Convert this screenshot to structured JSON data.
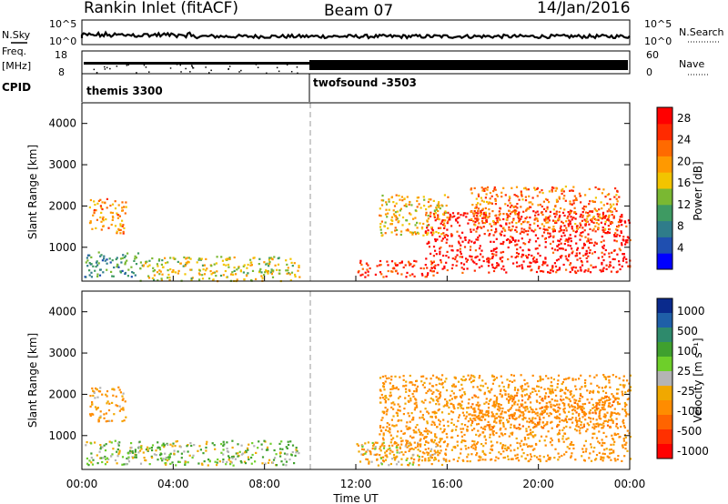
{
  "header": {
    "station": "Rankin Inlet (fitACF)",
    "beam": "Beam 07",
    "date": "14/Jan/2016"
  },
  "aux": {
    "nsky_label": "N.Sky",
    "nsearch_label": "N.Search",
    "noise_ticks": [
      "10^5",
      "10^0"
    ],
    "freq_label_1": "Freq.",
    "freq_label_2": "[MHz]",
    "freq_ticks": [
      "18",
      "8"
    ],
    "nave_label": "Nave",
    "nave_ticks": [
      "60",
      "0"
    ],
    "cpid_label": "CPID",
    "cpid_modes": [
      {
        "name": "themis 3300",
        "start_hour": 0
      },
      {
        "name": "twofsound -3503",
        "start_hour": 10
      }
    ]
  },
  "colors": {
    "power_scale": [
      "#0000ff",
      "#1f4fb0",
      "#2f7c8a",
      "#3e9a62",
      "#7ab832",
      "#f2c400",
      "#ff9900",
      "#ff6a00",
      "#ff2a00",
      "#ff0000"
    ],
    "velocity_scale": [
      "#0a2a8c",
      "#1f5fa8",
      "#2e8a6c",
      "#3fa02e",
      "#6ecf2a",
      "#b4b4b4",
      "#f0a800",
      "#ff8c00",
      "#ff6400",
      "#ff3000",
      "#ff0000"
    ]
  },
  "chart_data": [
    {
      "type": "heatmap",
      "panel": "power",
      "x_label": "Time UT",
      "y_label": "Slant Range [km]",
      "x_ticks": [
        "00:00",
        "04:00",
        "08:00",
        "12:00",
        "16:00",
        "20:00",
        "00:00"
      ],
      "y_ticks": [
        "1000",
        "2000",
        "3000",
        "4000"
      ],
      "y_range_km": [
        180,
        4500
      ],
      "x_range_hours": [
        0,
        24
      ],
      "colorbar_label": "Power [dB]",
      "colorbar_ticks": [
        "4",
        "8",
        "12",
        "16",
        "20",
        "24",
        "28"
      ],
      "colorbar_range": [
        0,
        30
      ],
      "scatter_regions": [
        {
          "t0": 0.3,
          "t1": 1.9,
          "r0": 1350,
          "r1": 2200,
          "value": 20
        },
        {
          "t0": 0.1,
          "t1": 2.5,
          "r0": 300,
          "r1": 900,
          "value": 10
        },
        {
          "t0": 2.5,
          "t1": 9.5,
          "r0": 200,
          "r1": 800,
          "value": 16
        },
        {
          "t0": 12.0,
          "t1": 15.5,
          "r0": 300,
          "r1": 700,
          "value": 26
        },
        {
          "t0": 15.0,
          "t1": 24.0,
          "r0": 400,
          "r1": 1900,
          "value": 28
        },
        {
          "t0": 13.0,
          "t1": 16.0,
          "r0": 1300,
          "r1": 2300,
          "value": 18
        },
        {
          "t0": 17.0,
          "t1": 23.5,
          "r0": 1400,
          "r1": 2500,
          "value": 22
        }
      ]
    },
    {
      "type": "heatmap",
      "panel": "velocity",
      "x_label": "Time UT",
      "y_label": "Slant Range [km]",
      "x_ticks": [
        "00:00",
        "04:00",
        "08:00",
        "12:00",
        "16:00",
        "20:00",
        "00:00"
      ],
      "y_ticks": [
        "1000",
        "2000",
        "3000",
        "4000"
      ],
      "y_range_km": [
        180,
        4500
      ],
      "x_range_hours": [
        0,
        24
      ],
      "colorbar_label": "Velocity [m s⁻¹]",
      "colorbar_ticks": [
        "1000",
        "500",
        "100",
        "25",
        "-25",
        "-100",
        "-500",
        "-1000"
      ],
      "scatter_regions": [
        {
          "t0": 0.3,
          "t1": 1.9,
          "r0": 1350,
          "r1": 2200,
          "value": -150
        },
        {
          "t0": 0.1,
          "t1": 9.5,
          "r0": 300,
          "r1": 900,
          "value": 60
        },
        {
          "t0": 12.0,
          "t1": 16.0,
          "r0": 300,
          "r1": 900,
          "value": -80
        },
        {
          "t0": 13.0,
          "t1": 24.0,
          "r0": 400,
          "r1": 2500,
          "value": -180
        },
        {
          "t0": 17.0,
          "t1": 23.5,
          "r0": 1200,
          "r1": 2000,
          "value": -400
        }
      ]
    }
  ]
}
